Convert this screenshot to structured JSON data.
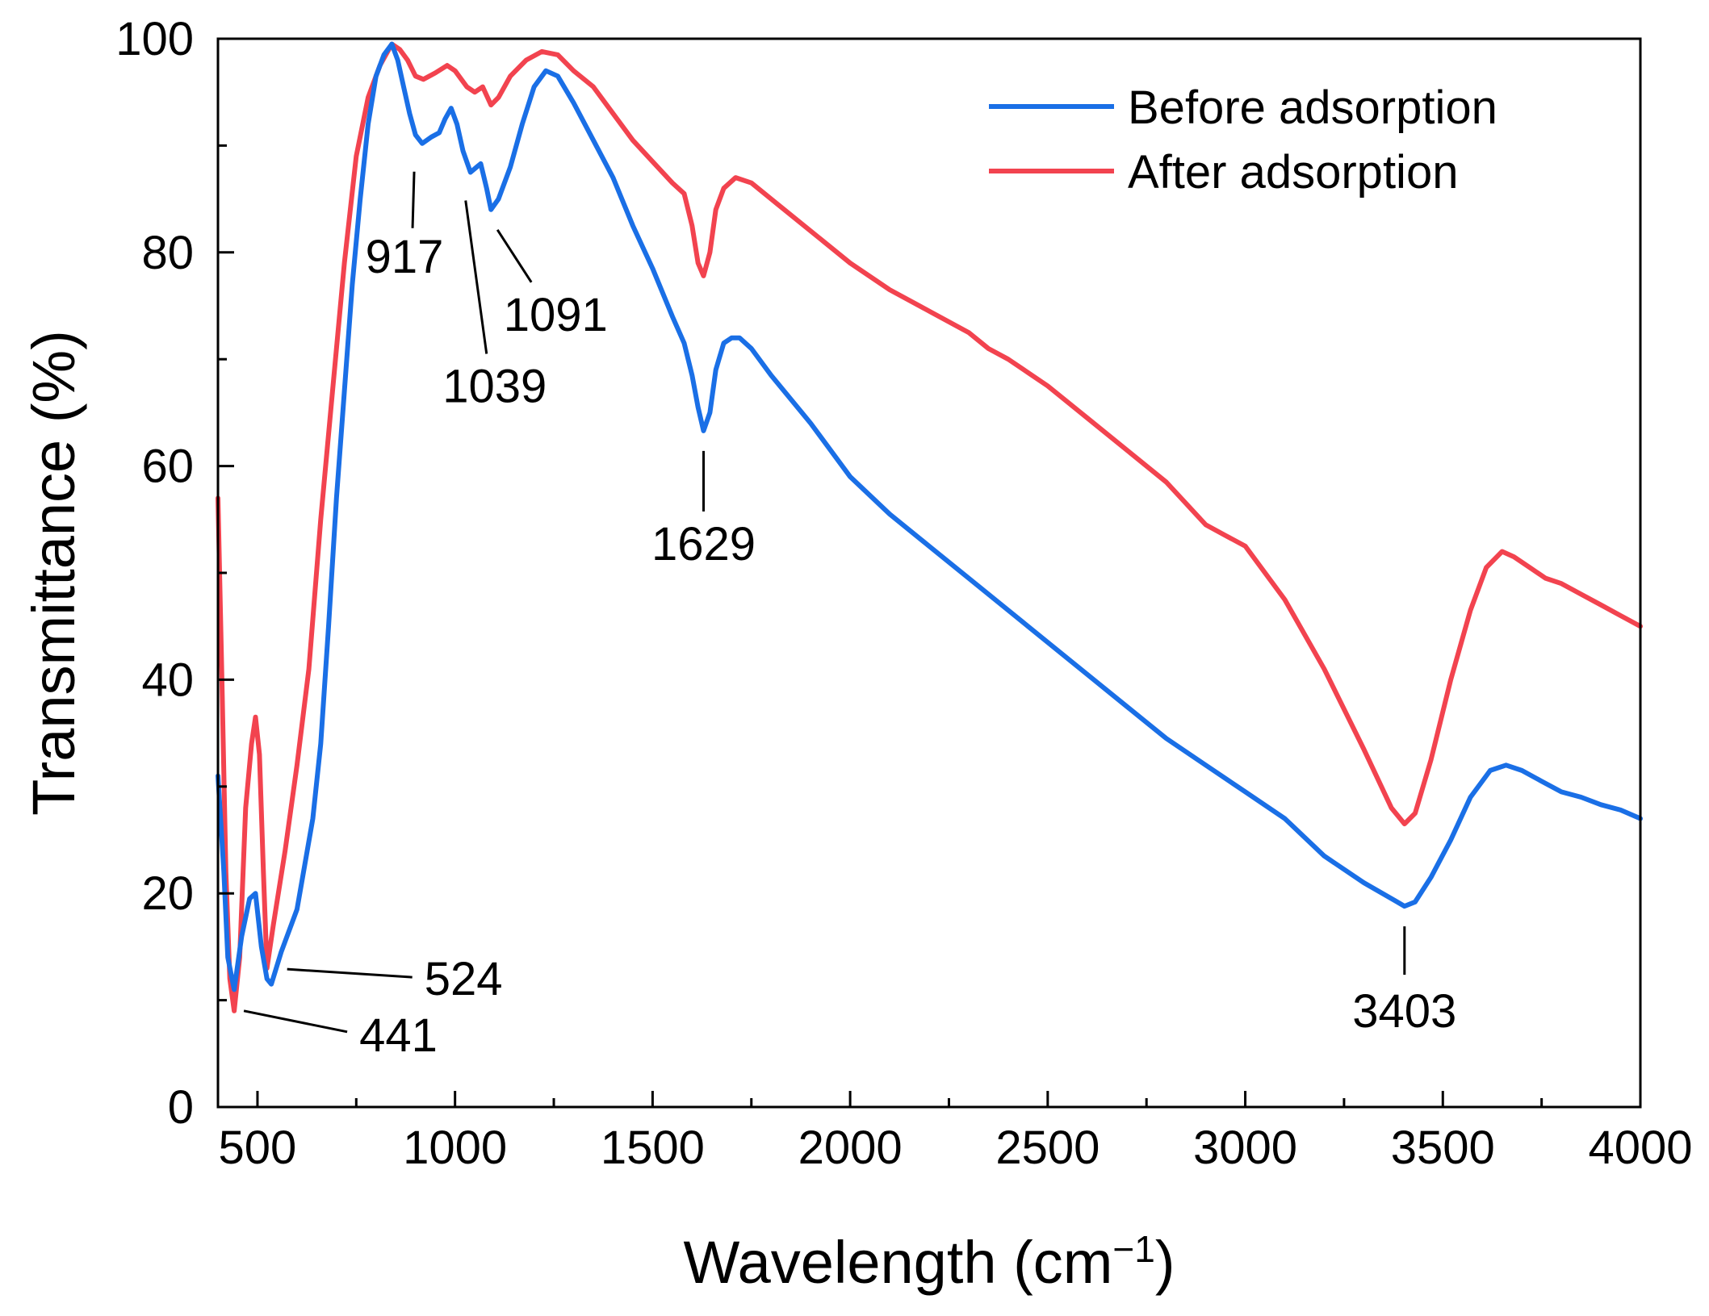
{
  "chart_data": {
    "type": "line",
    "xlabel": "Wavelength (cm",
    "xlabel_sup": "−1",
    "xlabel_close": ")",
    "ylabel": "Transmittance (%)",
    "xlim": [
      400,
      4000
    ],
    "ylim": [
      0,
      100
    ],
    "x_ticks": [
      500,
      1000,
      1500,
      2000,
      2500,
      3000,
      3500,
      4000
    ],
    "y_ticks": [
      0,
      20,
      40,
      60,
      80,
      100
    ],
    "grid": false,
    "legend_position": "top-right",
    "series": [
      {
        "name": "Before adsorption",
        "color": "#1a6fe6",
        "points": [
          [
            400,
            31
          ],
          [
            415,
            22
          ],
          [
            425,
            14
          ],
          [
            441,
            11
          ],
          [
            460,
            16
          ],
          [
            480,
            19.5
          ],
          [
            495,
            20
          ],
          [
            510,
            15
          ],
          [
            524,
            12
          ],
          [
            535,
            11.5
          ],
          [
            560,
            14.5
          ],
          [
            600,
            18.5
          ],
          [
            640,
            27
          ],
          [
            660,
            34
          ],
          [
            680,
            45
          ],
          [
            700,
            57
          ],
          [
            720,
            67
          ],
          [
            740,
            77
          ],
          [
            760,
            85
          ],
          [
            780,
            92
          ],
          [
            800,
            96.5
          ],
          [
            820,
            98.5
          ],
          [
            840,
            99.5
          ],
          [
            855,
            98
          ],
          [
            870,
            95.5
          ],
          [
            885,
            93
          ],
          [
            900,
            91
          ],
          [
            917,
            90.2
          ],
          [
            940,
            90.8
          ],
          [
            960,
            91.2
          ],
          [
            975,
            92.5
          ],
          [
            990,
            93.5
          ],
          [
            1005,
            92
          ],
          [
            1020,
            89.5
          ],
          [
            1039,
            87.5
          ],
          [
            1055,
            88
          ],
          [
            1065,
            88.3
          ],
          [
            1080,
            86
          ],
          [
            1091,
            84
          ],
          [
            1110,
            85
          ],
          [
            1140,
            88
          ],
          [
            1170,
            92
          ],
          [
            1200,
            95.5
          ],
          [
            1230,
            97
          ],
          [
            1260,
            96.5
          ],
          [
            1300,
            94
          ],
          [
            1350,
            90.5
          ],
          [
            1400,
            87
          ],
          [
            1450,
            82.5
          ],
          [
            1500,
            78.5
          ],
          [
            1550,
            74
          ],
          [
            1580,
            71.5
          ],
          [
            1600,
            68.5
          ],
          [
            1615,
            65.5
          ],
          [
            1629,
            63.3
          ],
          [
            1645,
            65
          ],
          [
            1660,
            69
          ],
          [
            1680,
            71.5
          ],
          [
            1700,
            72
          ],
          [
            1720,
            72
          ],
          [
            1750,
            71
          ],
          [
            1800,
            68.5
          ],
          [
            1900,
            64
          ],
          [
            2000,
            59
          ],
          [
            2100,
            55.5
          ],
          [
            2200,
            52.5
          ],
          [
            2300,
            49.5
          ],
          [
            2400,
            46.5
          ],
          [
            2500,
            43.5
          ],
          [
            2600,
            40.5
          ],
          [
            2700,
            37.5
          ],
          [
            2800,
            34.5
          ],
          [
            2900,
            32
          ],
          [
            3000,
            29.5
          ],
          [
            3100,
            27
          ],
          [
            3200,
            23.5
          ],
          [
            3300,
            21
          ],
          [
            3380,
            19.3
          ],
          [
            3403,
            18.8
          ],
          [
            3430,
            19.2
          ],
          [
            3470,
            21.5
          ],
          [
            3520,
            25
          ],
          [
            3570,
            29
          ],
          [
            3620,
            31.5
          ],
          [
            3660,
            32
          ],
          [
            3700,
            31.5
          ],
          [
            3750,
            30.5
          ],
          [
            3800,
            29.5
          ],
          [
            3850,
            29
          ],
          [
            3900,
            28.3
          ],
          [
            3950,
            27.8
          ],
          [
            4000,
            27
          ]
        ]
      },
      {
        "name": "After adsorption",
        "color": "#f2434f",
        "points": [
          [
            400,
            57
          ],
          [
            410,
            40
          ],
          [
            420,
            22
          ],
          [
            430,
            12
          ],
          [
            441,
            9
          ],
          [
            455,
            14
          ],
          [
            470,
            28
          ],
          [
            485,
            34
          ],
          [
            495,
            36.5
          ],
          [
            505,
            33
          ],
          [
            515,
            22
          ],
          [
            524,
            13
          ],
          [
            540,
            17
          ],
          [
            570,
            24
          ],
          [
            600,
            32
          ],
          [
            630,
            41
          ],
          [
            660,
            55
          ],
          [
            690,
            67
          ],
          [
            720,
            79
          ],
          [
            750,
            89
          ],
          [
            780,
            94.5
          ],
          [
            810,
            97.5
          ],
          [
            840,
            99.5
          ],
          [
            860,
            99
          ],
          [
            880,
            98
          ],
          [
            900,
            96.5
          ],
          [
            920,
            96.2
          ],
          [
            950,
            96.8
          ],
          [
            980,
            97.5
          ],
          [
            1000,
            97
          ],
          [
            1030,
            95.5
          ],
          [
            1050,
            95
          ],
          [
            1070,
            95.5
          ],
          [
            1091,
            93.8
          ],
          [
            1110,
            94.5
          ],
          [
            1140,
            96.5
          ],
          [
            1180,
            98
          ],
          [
            1220,
            98.8
          ],
          [
            1260,
            98.5
          ],
          [
            1300,
            97
          ],
          [
            1350,
            95.5
          ],
          [
            1400,
            93
          ],
          [
            1450,
            90.5
          ],
          [
            1500,
            88.5
          ],
          [
            1550,
            86.5
          ],
          [
            1580,
            85.5
          ],
          [
            1600,
            82.5
          ],
          [
            1615,
            79
          ],
          [
            1629,
            77.8
          ],
          [
            1645,
            80
          ],
          [
            1660,
            84
          ],
          [
            1680,
            86
          ],
          [
            1710,
            87
          ],
          [
            1750,
            86.5
          ],
          [
            1800,
            85
          ],
          [
            1900,
            82
          ],
          [
            2000,
            79
          ],
          [
            2100,
            76.5
          ],
          [
            2200,
            74.5
          ],
          [
            2300,
            72.5
          ],
          [
            2350,
            71
          ],
          [
            2400,
            70
          ],
          [
            2500,
            67.5
          ],
          [
            2600,
            64.5
          ],
          [
            2700,
            61.5
          ],
          [
            2800,
            58.5
          ],
          [
            2850,
            56.5
          ],
          [
            2900,
            54.5
          ],
          [
            2950,
            53.5
          ],
          [
            3000,
            52.5
          ],
          [
            3100,
            47.5
          ],
          [
            3200,
            41
          ],
          [
            3300,
            33.5
          ],
          [
            3370,
            28
          ],
          [
            3403,
            26.5
          ],
          [
            3430,
            27.5
          ],
          [
            3470,
            32.5
          ],
          [
            3520,
            40
          ],
          [
            3570,
            46.5
          ],
          [
            3610,
            50.5
          ],
          [
            3650,
            52
          ],
          [
            3680,
            51.5
          ],
          [
            3720,
            50.5
          ],
          [
            3760,
            49.5
          ],
          [
            3800,
            49
          ],
          [
            3850,
            48
          ],
          [
            3900,
            47
          ],
          [
            3950,
            46
          ],
          [
            4000,
            45
          ]
        ]
      }
    ],
    "annotations": [
      {
        "label": "917",
        "x": 917,
        "y": 90.2
      },
      {
        "label": "1039",
        "x": 1039,
        "y": 87.5
      },
      {
        "label": "1091",
        "x": 1091,
        "y": 84
      },
      {
        "label": "1629",
        "x": 1629,
        "y": 63.3
      },
      {
        "label": "3403",
        "x": 3403,
        "y": 18.8
      },
      {
        "label": "524",
        "x": 524,
        "y": 12
      },
      {
        "label": "441",
        "x": 441,
        "y": 9
      }
    ]
  }
}
